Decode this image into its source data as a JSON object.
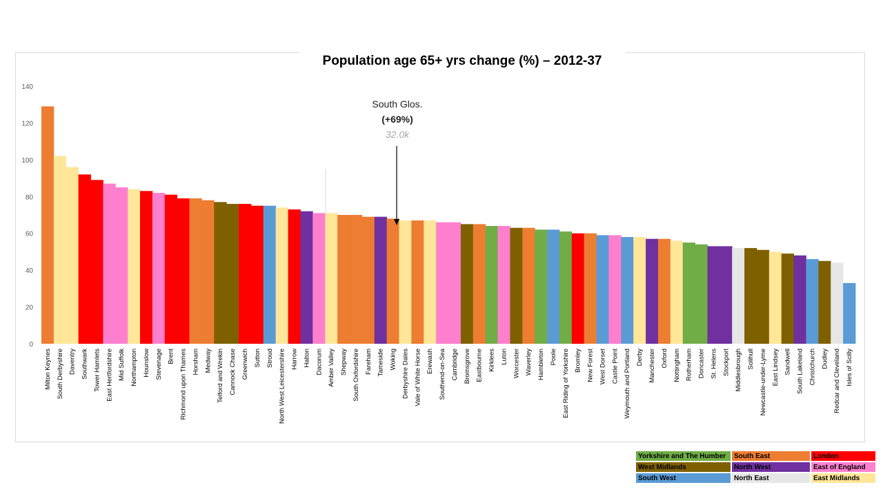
{
  "chart_data": {
    "type": "bar",
    "title": "Population age 65+ yrs change (%) – 2012-37",
    "xlabel": "",
    "ylabel": "",
    "ylim": [
      0,
      140
    ],
    "yticks": [
      0,
      20,
      40,
      60,
      80,
      100,
      120,
      140
    ],
    "grid": false,
    "legend_position": "bottom-right",
    "categories": [
      "Milton Keynes",
      "South Derbyshire",
      "Daventry",
      "Southwark",
      "Tower Hamlets",
      "East Hertfordshire",
      "Mid Suffolk",
      "Northampton",
      "Hounslow",
      "Stevenage",
      "Brent",
      "Richmond upon Thames",
      "Horsham",
      "Medway",
      "Telford and Wrekin",
      "Cannock Chase",
      "Greenwich",
      "Sutton",
      "Stroud",
      "North West Leicestershire",
      "Harrow",
      "Halton",
      "Dacorum",
      "Amber Valley",
      "Shepway",
      "South Oxfordshire",
      "Fareham",
      "Tameside",
      "Woking",
      "Derbyshire Dales",
      "Vale of White Horse",
      "Erewash",
      "Southend-on-Sea",
      "Cambridge",
      "Bromsgrove",
      "Eastbourne",
      "Kirklees",
      "Luton",
      "Worcester",
      "Waverley",
      "Hambleton",
      "Poole",
      "East Riding of Yorkshire",
      "Bromley",
      "New Forest",
      "West Dorset",
      "Castle Point",
      "Weymouth and Portland",
      "Derby",
      "Manchester",
      "Oxford",
      "Nottingham",
      "Rotherham",
      "Doncaster",
      "St. Helens",
      "Stockport",
      "Middlesbrough",
      "Solihull",
      "Newcastle-under-Lyme",
      "East Lindsey",
      "Sandwell",
      "South Lakeland",
      "Christchurch",
      "Dudley",
      "Redcar and Cleveland",
      "Isles of Scilly"
    ],
    "values": [
      129,
      102,
      96,
      92,
      89,
      87,
      85,
      84,
      83,
      82,
      81,
      79,
      79,
      78,
      77,
      76,
      76,
      75,
      75,
      74,
      73,
      72,
      71,
      71,
      70,
      70,
      69,
      69,
      68,
      67,
      67,
      67,
      66,
      66,
      65,
      65,
      64,
      64,
      63,
      63,
      62,
      62,
      61,
      60,
      60,
      59,
      59,
      58,
      58,
      57,
      57,
      56,
      55,
      54,
      53,
      53,
      52,
      52,
      51,
      50,
      49,
      48,
      46,
      45,
      44,
      33
    ],
    "regions": [
      "South East",
      "East Midlands",
      "East Midlands",
      "London",
      "London",
      "East of England",
      "East of England",
      "East Midlands",
      "London",
      "East of England",
      "London",
      "London",
      "South East",
      "South East",
      "West Midlands",
      "West Midlands",
      "London",
      "London",
      "South West",
      "East Midlands",
      "London",
      "North West",
      "East of England",
      "East Midlands",
      "South East",
      "South East",
      "South East",
      "North West",
      "South East",
      "East Midlands",
      "South East",
      "East Midlands",
      "East of England",
      "East of England",
      "West Midlands",
      "South East",
      "Yorkshire and The Humber",
      "East of England",
      "West Midlands",
      "South East",
      "Yorkshire and The Humber",
      "South West",
      "Yorkshire and The Humber",
      "London",
      "South East",
      "South West",
      "East of England",
      "South West",
      "East Midlands",
      "North West",
      "South East",
      "East Midlands",
      "Yorkshire and The Humber",
      "Yorkshire and The Humber",
      "North West",
      "North West",
      "North East",
      "West Midlands",
      "West Midlands",
      "East Midlands",
      "West Midlands",
      "North West",
      "South West",
      "West Midlands",
      "North East",
      "South West"
    ],
    "annotation": {
      "name": "South Glos.",
      "change": "(+69%)",
      "population": "32.0k",
      "value": 69,
      "category": "Woking"
    },
    "legend": [
      {
        "name": "Yorkshire and The Humber",
        "color": "#70ad47"
      },
      {
        "name": "South East",
        "color": "#ed7d31"
      },
      {
        "name": "London",
        "color": "#ff0000"
      },
      {
        "name": "West Midlands",
        "color": "#7f6000"
      },
      {
        "name": "North West",
        "color": "#7030a0"
      },
      {
        "name": "East of England",
        "color": "#ff7fcf"
      },
      {
        "name": "South West",
        "color": "#5b9bd5"
      },
      {
        "name": "North East",
        "color": "#e7e6e6"
      },
      {
        "name": "East Midlands",
        "color": "#ffe699"
      }
    ]
  }
}
